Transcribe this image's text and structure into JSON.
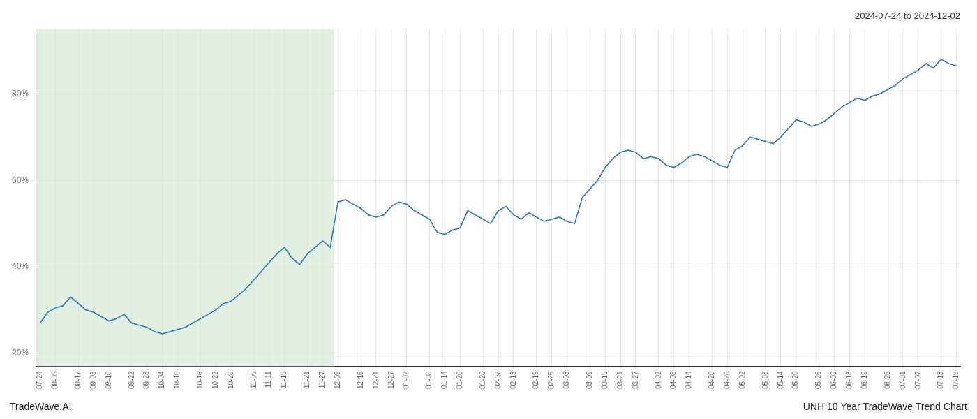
{
  "chart_data": {
    "type": "line",
    "title": "2024-07-24 to 2024-12-02",
    "annotations": [
      "TradeWave.AI",
      "UNH 10 Year TradeWave Trend Chart"
    ],
    "categories": [
      "07-24",
      null,
      "08-05",
      null,
      null,
      "08-17",
      null,
      "09-03",
      null,
      "09-10",
      null,
      null,
      "09-22",
      null,
      "09-28",
      null,
      "10-04",
      null,
      "10-10",
      null,
      null,
      "10-16",
      null,
      "10-22",
      null,
      "10-28",
      null,
      null,
      "11-05",
      null,
      "11-11",
      null,
      "11-15",
      null,
      null,
      "11-21",
      null,
      "11-27",
      null,
      "12-09",
      null,
      null,
      "12-15",
      null,
      "12-21",
      null,
      "12-27",
      null,
      "01-02",
      null,
      null,
      "01-08",
      null,
      "01-14",
      null,
      "01-20",
      null,
      null,
      "01-26",
      null,
      "02-07",
      null,
      "02-13",
      null,
      null,
      "02-19",
      null,
      "02-25",
      null,
      "03-03",
      null,
      null,
      "03-09",
      null,
      "03-15",
      null,
      "03-21",
      null,
      "03-27",
      null,
      null,
      "04-02",
      null,
      "04-08",
      null,
      "04-14",
      null,
      null,
      "04-20",
      null,
      "04-26",
      null,
      "05-02",
      null,
      null,
      "05-08",
      null,
      "05-14",
      null,
      "05-20",
      null,
      null,
      "05-26",
      null,
      "06-03",
      null,
      "06-13",
      null,
      "06-19",
      null,
      null,
      "06-25",
      null,
      "07-01",
      null,
      "07-07",
      null,
      null,
      "07-13",
      null,
      "07-19"
    ],
    "values": [
      27.0,
      29.5,
      30.5,
      31.0,
      33.0,
      31.5,
      30.0,
      29.5,
      28.5,
      27.5,
      28.0,
      29.0,
      27.0,
      26.5,
      26.0,
      25.0,
      24.5,
      25.0,
      25.5,
      26.0,
      27.0,
      28.0,
      29.0,
      30.0,
      31.5,
      32.0,
      33.5,
      35.0,
      37.0,
      39.0,
      41.0,
      43.0,
      44.5,
      42.0,
      40.5,
      43.0,
      44.5,
      46.0,
      44.5,
      55.0,
      55.5,
      54.5,
      53.5,
      52.0,
      51.5,
      52.0,
      54.0,
      55.0,
      54.5,
      53.0,
      52.0,
      51.0,
      48.0,
      47.5,
      48.5,
      49.0,
      53.0,
      52.0,
      51.0,
      50.0,
      53.0,
      54.0,
      52.0,
      51.0,
      52.5,
      51.5,
      50.5,
      51.0,
      51.5,
      50.5,
      50.0,
      56.0,
      58.0,
      60.0,
      63.0,
      65.0,
      66.5,
      67.0,
      66.5,
      65.0,
      65.5,
      65.0,
      63.5,
      63.0,
      64.0,
      65.5,
      66.0,
      65.5,
      64.5,
      63.5,
      63.0,
      67.0,
      68.0,
      70.0,
      69.5,
      69.0,
      68.5,
      70.0,
      72.0,
      74.0,
      73.5,
      72.5,
      73.0,
      74.0,
      75.5,
      77.0,
      78.0,
      79.0,
      78.5,
      79.5,
      80.0,
      81.0,
      82.0,
      83.5,
      84.5,
      85.5,
      87.0,
      86.0,
      88.0,
      87.0,
      86.5
    ],
    "color": "#1f6fbd",
    "marker": "none",
    "ylim": [
      17,
      95
    ],
    "yticks": [
      {
        "value": 20,
        "label": "20%"
      },
      {
        "value": 40,
        "label": "40%"
      },
      {
        "value": 60,
        "label": "60%"
      },
      {
        "value": 80,
        "label": "80%"
      }
    ],
    "grid": true,
    "shade": {
      "start": 0,
      "end": 38,
      "color": "#d6ead6"
    }
  }
}
